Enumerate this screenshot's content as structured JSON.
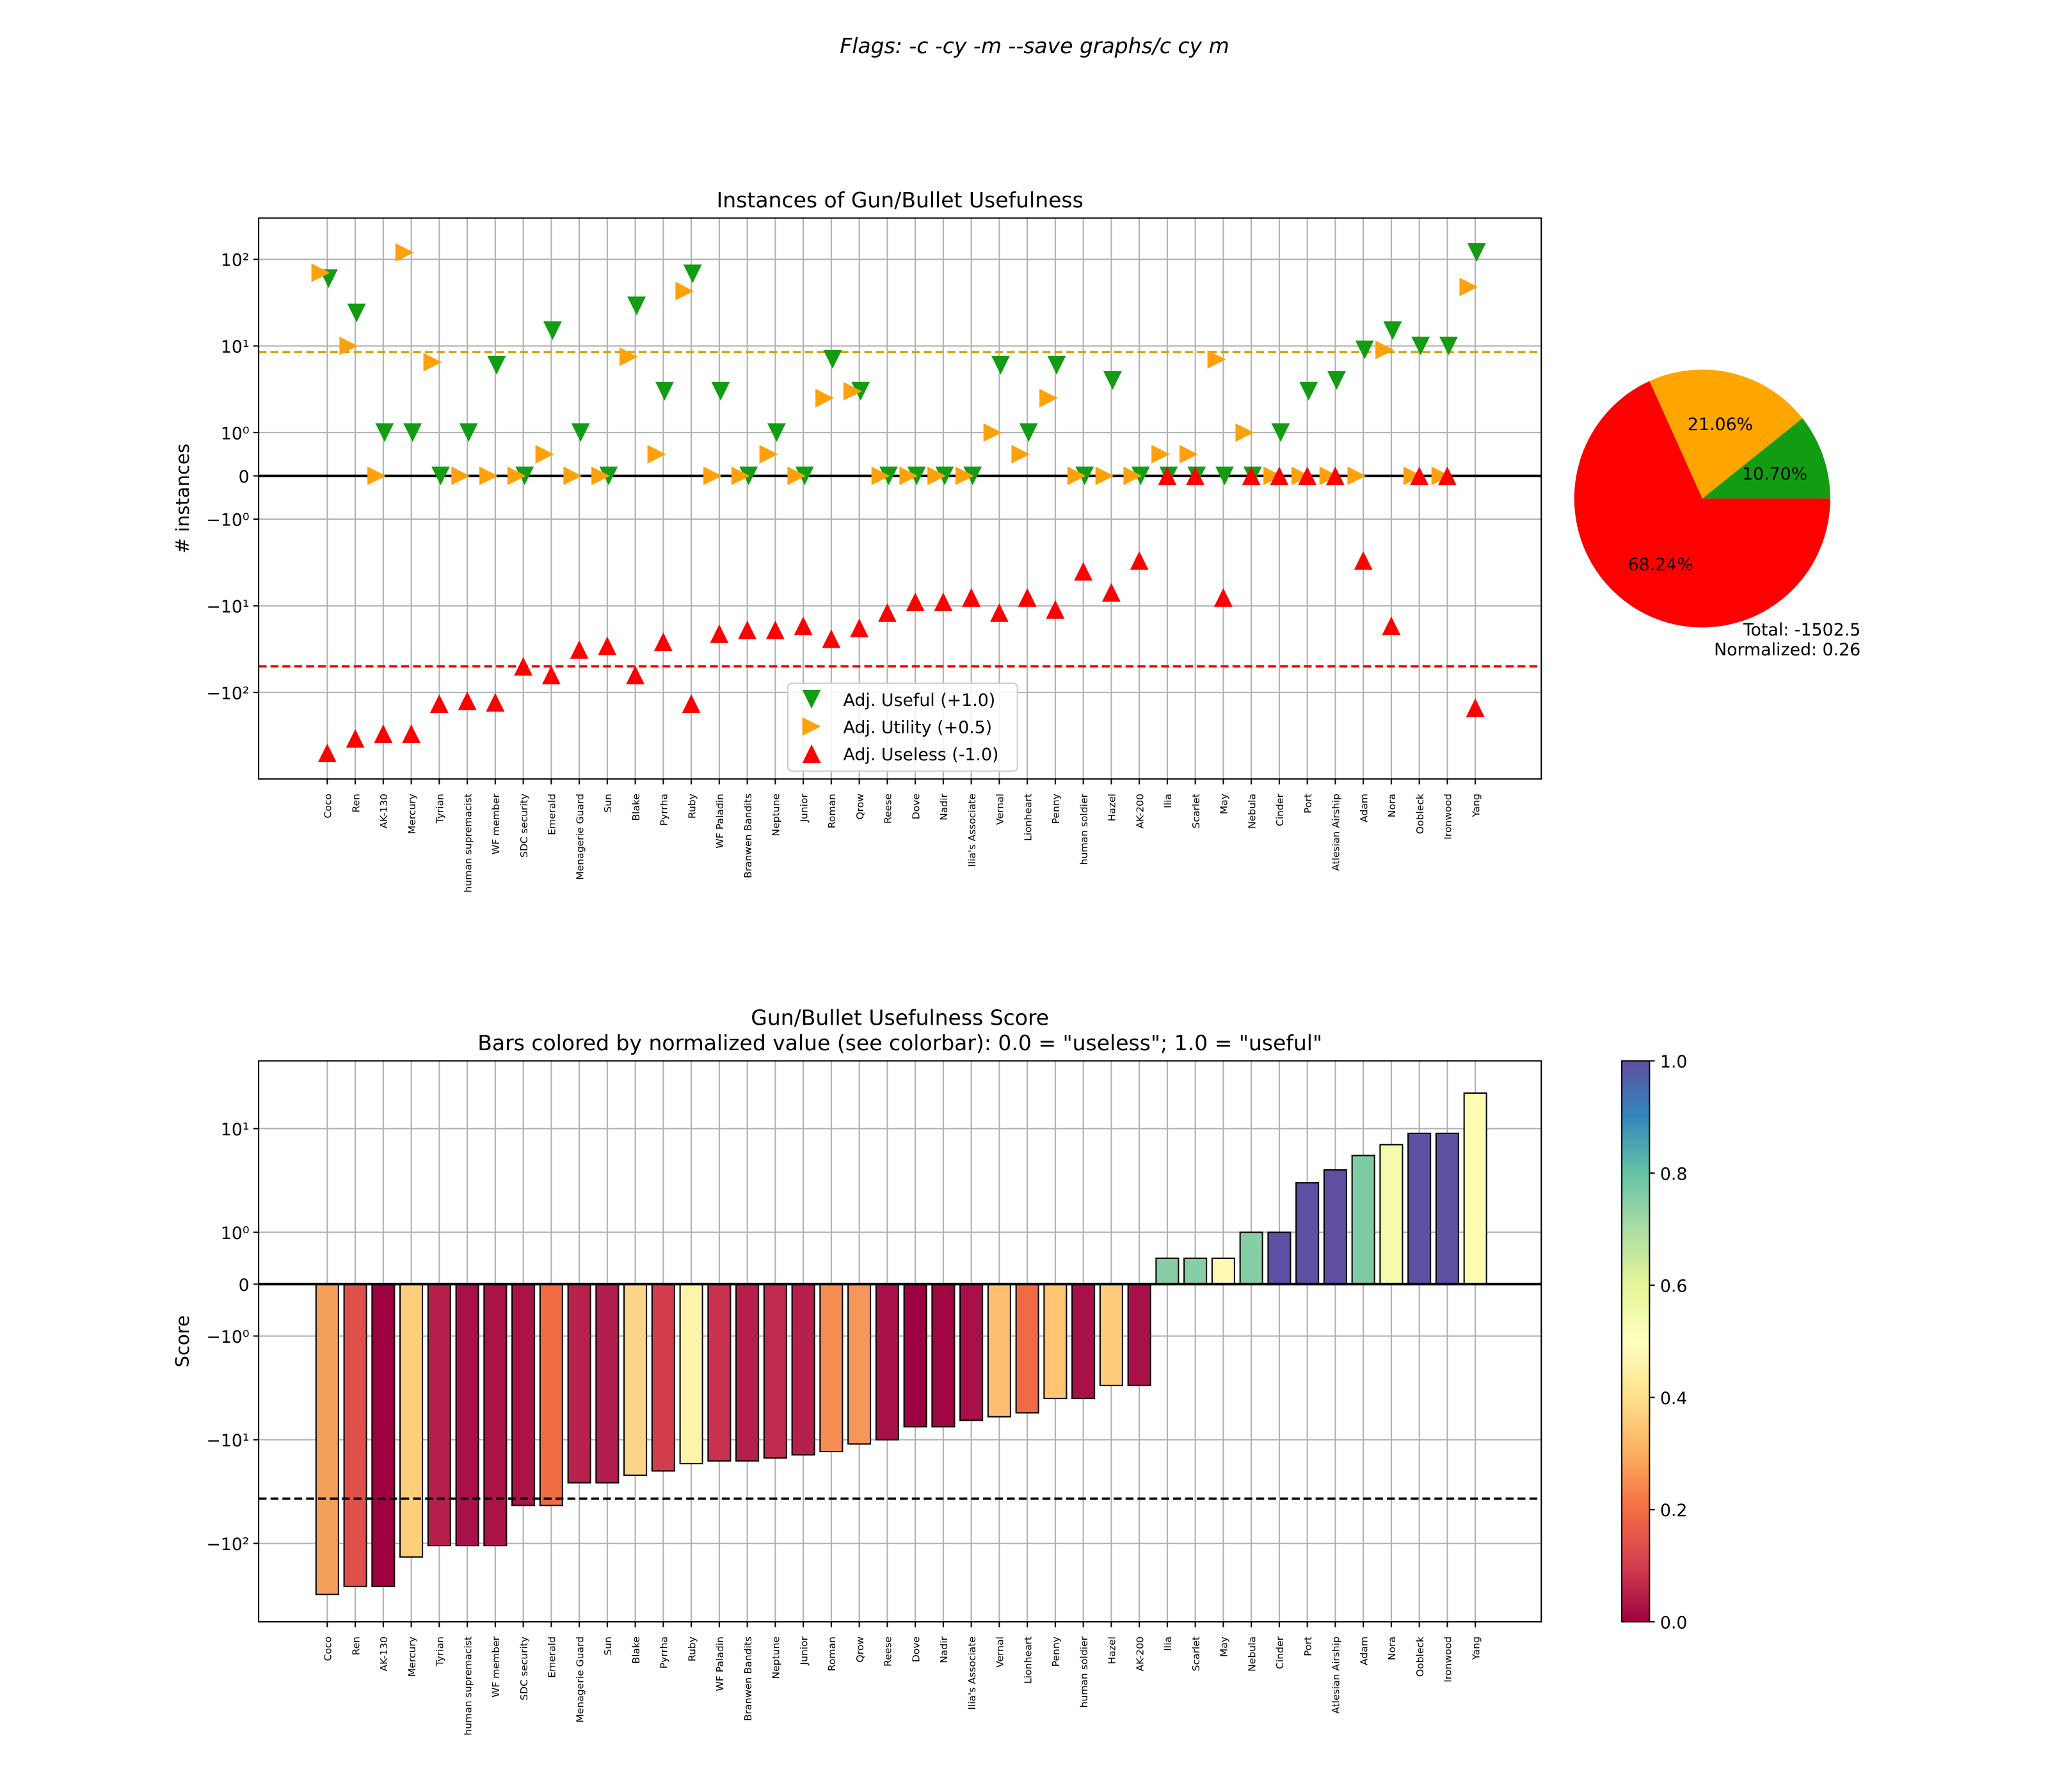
{
  "suptitle": "Flags: -c -cy -m --save graphs/c cy m",
  "chart_data": [
    {
      "type": "scatter",
      "title": "Instances of Gun/Bullet Usefulness",
      "ylabel": "# instances",
      "yscale": "symlog",
      "grid": true,
      "legend": "lower center",
      "categories": [
        "Coco",
        "Ren",
        "AK-130",
        "Mercury",
        "Tyrian",
        "human supremacist",
        "WF member",
        "SDC security",
        "Emerald",
        "Menagerie Guard",
        "Sun",
        "Blake",
        "Pyrrha",
        "Ruby",
        "WF Paladin",
        "Branwen Bandits",
        "Neptune",
        "Junior",
        "Roman",
        "Qrow",
        "Reese",
        "Dove",
        "Nadir",
        "Ilia's Associate",
        "Vernal",
        "Lionheart",
        "Penny",
        "human soldier",
        "Hazel",
        "AK-200",
        "Ilia",
        "Scarlet",
        "May",
        "Nebula",
        "Cinder",
        "Port",
        "Atlesian Airship",
        "Adam",
        "Nora",
        "Oobleck",
        "Ironwood",
        "Yang"
      ],
      "series": [
        {
          "name": "Adj. Useful (+1.0)",
          "color": "#129c12",
          "marker": "v",
          "values": [
            60,
            24,
            1,
            1,
            0,
            1,
            6,
            0,
            15,
            1,
            0,
            29,
            3,
            68,
            3,
            0,
            1,
            0,
            7,
            3,
            0,
            0,
            0,
            0,
            6,
            1,
            6,
            0,
            4,
            0,
            0,
            0,
            0,
            0,
            1,
            3,
            4,
            9,
            15,
            10,
            10,
            120
          ]
        },
        {
          "name": "Adj. Utility (+0.5)",
          "color": "#ffa10a",
          "marker": ">",
          "values": [
            70,
            10,
            0,
            120,
            6.5,
            0,
            0,
            0,
            0.5,
            0,
            0,
            7.5,
            0.5,
            43,
            0,
            0,
            0.5,
            0,
            2.5,
            3,
            0,
            0,
            0,
            0,
            1,
            0.5,
            2.5,
            0,
            0,
            0,
            0.5,
            0.5,
            7,
            1,
            0,
            0,
            0,
            0,
            9,
            0,
            0,
            48
          ]
        },
        {
          "name": "Adj. Useless (-1.0)",
          "color": "#ff0000",
          "marker": "^",
          "values": [
            -500,
            -340,
            -300,
            -300,
            -135,
            -125,
            -130,
            -50,
            -63,
            -32,
            -29,
            -63,
            -26,
            -135,
            -21,
            -19,
            -19,
            -17,
            -24,
            -18,
            -12,
            -9,
            -9,
            -8,
            -12,
            -8,
            -11,
            -4,
            -7,
            -3,
            0,
            0,
            -8,
            0,
            0,
            0,
            0,
            -3,
            -17,
            0,
            0,
            -150
          ]
        }
      ],
      "hlines": [
        {
          "value": 8.5,
          "color": "#d4a017"
        },
        {
          "value": -50,
          "color": "#ff0000"
        }
      ],
      "ylim": [
        -1000,
        300
      ],
      "yticks": [
        {
          "value": 100,
          "label": "10²"
        },
        {
          "value": 10,
          "label": "10¹"
        },
        {
          "value": 1,
          "label": "10⁰"
        },
        0,
        {
          "value": -1,
          "label": "−10⁰"
        },
        {
          "value": -10,
          "label": "−10¹"
        },
        {
          "value": -100,
          "label": "−10²"
        }
      ]
    },
    {
      "type": "pie",
      "values": [
        10.7,
        21.06,
        68.24
      ],
      "value_labels": [
        "10.70%",
        "21.06%",
        "68.24%"
      ],
      "colors": [
        "#129c12",
        "#ffa500",
        "#ff0000"
      ],
      "annotations": [
        "Total: -1502.5",
        "Normalized: 0.26"
      ]
    },
    {
      "type": "bar",
      "title": "Gun/Bullet Usefulness Score",
      "subtitle": "Bars colored by normalized value (see colorbar): 0.0 = \"useless\"; 1.0 = \"useful\"",
      "ylabel": "Score",
      "yscale": "symlog",
      "grid": true,
      "categories": [
        "Coco",
        "Ren",
        "AK-130",
        "Mercury",
        "Tyrian",
        "human supremacist",
        "WF member",
        "SDC security",
        "Emerald",
        "Menagerie Guard",
        "Sun",
        "Blake",
        "Pyrrha",
        "Ruby",
        "WF Paladin",
        "Branwen Bandits",
        "Neptune",
        "Junior",
        "Roman",
        "Qrow",
        "Reese",
        "Dove",
        "Nadir",
        "Ilia's Associate",
        "Vernal",
        "Lionheart",
        "Penny",
        "human soldier",
        "Hazel",
        "AK-200",
        "Ilia",
        "Scarlet",
        "May",
        "Nebula",
        "Cinder",
        "Port",
        "Atlesian Airship",
        "Adam",
        "Nora",
        "Oobleck",
        "Ironwood",
        "Yang"
      ],
      "values": [
        -310,
        -260,
        -260,
        -135,
        -105,
        -105,
        -105,
        -43,
        -43,
        -26,
        -26,
        -22,
        -20,
        -17,
        -16,
        -16,
        -15,
        -14,
        -13,
        -11,
        -10,
        -7.5,
        -7.5,
        -6.5,
        -6,
        -5.5,
        -4,
        -4,
        -3,
        -3,
        0.5,
        0.5,
        0.5,
        1,
        1,
        3,
        4,
        5.5,
        7,
        9,
        9,
        22
      ],
      "colors": [
        "#f4a05a",
        "#e0504a",
        "#9e0142",
        "#fdcf7c",
        "#b51f4c",
        "#a8104a",
        "#ab1248",
        "#ab1248",
        "#f06a44",
        "#b7224d",
        "#b11e4d",
        "#fdd58a",
        "#d23d4e",
        "#fef3aa",
        "#ca3350",
        "#b51f4c",
        "#c02a4e",
        "#b51f4c",
        "#f68d54",
        "#f7965a",
        "#a8104a",
        "#9e0142",
        "#a10643",
        "#a8104a",
        "#fdbe70",
        "#f06a44",
        "#fdc472",
        "#a8104a",
        "#fdcb7a",
        "#a8104a",
        "#86cfa5",
        "#86cfa5",
        "#fef8b4",
        "#86cfa5",
        "#5e4fa2",
        "#5e4fa2",
        "#5e4fa2",
        "#7ecaa4",
        "#f6faad",
        "#5e4fa2",
        "#5e4fa2",
        "#fcfcb2"
      ],
      "hlines": [
        {
          "value": -37,
          "color": "#000000"
        }
      ],
      "ylim": [
        -570,
        45
      ],
      "yticks": [
        {
          "value": 10,
          "label": "10¹"
        },
        {
          "value": 1,
          "label": "10⁰"
        },
        0,
        {
          "value": -1,
          "label": "−10⁰"
        },
        {
          "value": -10,
          "label": "−10¹"
        },
        {
          "value": -100,
          "label": "−10²"
        }
      ],
      "colorbar": {
        "colormap": "Spectral",
        "lim": [
          0,
          1
        ],
        "ticks": [
          {
            "value": 0,
            "label": "0.0"
          },
          {
            "value": 0.2,
            "label": "0.2"
          },
          {
            "value": 0.4,
            "label": "0.4"
          },
          {
            "value": 0.6,
            "label": "0.6"
          },
          {
            "value": 0.8,
            "label": "0.8"
          },
          {
            "value": 1,
            "label": "1.0"
          }
        ]
      }
    }
  ]
}
